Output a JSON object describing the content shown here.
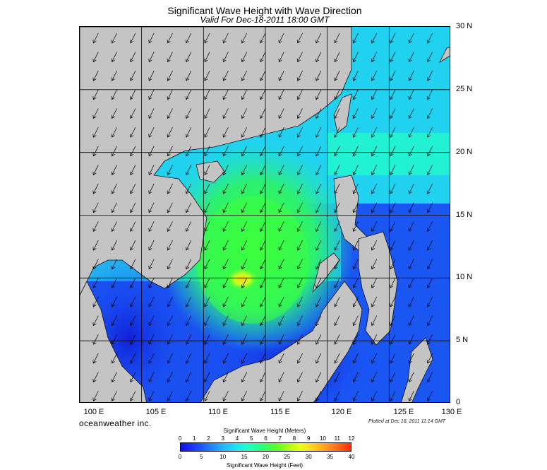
{
  "header": {
    "title": "Significant Wave Height with Wave Direction",
    "subtitle": "Valid For Dec-18-2011 18:00 GMT"
  },
  "map": {
    "lat_labels": [
      "30 N",
      "25 N",
      "20 N",
      "15 N",
      "10 N",
      "5 N",
      "0"
    ],
    "lon_labels": [
      "100 E",
      "105 E",
      "110 E",
      "115 E",
      "120 E",
      "125 E",
      "130 E"
    ],
    "lon_range": [
      100,
      130
    ],
    "lat_range": [
      0,
      30
    ],
    "grid_step_deg": 5,
    "arrow_step_deg": 1,
    "wave_direction": "from northeast (arrows point southwest)",
    "land_color": "#c4c4c4",
    "peak_wave_height_m": 9,
    "peak_location": {
      "lon": 112.5,
      "lat": 10.5
    }
  },
  "footer": {
    "brand": "oceanweather inc.",
    "plotted": "Plotted at Dec 18, 2011 11:14 GMT"
  },
  "colorbar": {
    "title_meters": "Significant Wave Height (Meters)",
    "meters_ticks": [
      "0",
      "1",
      "2",
      "3",
      "4",
      "5",
      "6",
      "7",
      "8",
      "9",
      "10",
      "11",
      "12"
    ],
    "feet_ticks": [
      "0",
      "5",
      "10",
      "15",
      "20",
      "25",
      "30",
      "35",
      "40"
    ],
    "title_feet": "Significant Wave Height (Feet)",
    "colors": [
      "#1010e6",
      "#1f7dff",
      "#22b6ff",
      "#20ffc0",
      "#2bff7a",
      "#a6ff1a",
      "#ffd020",
      "#ff2a10"
    ]
  }
}
